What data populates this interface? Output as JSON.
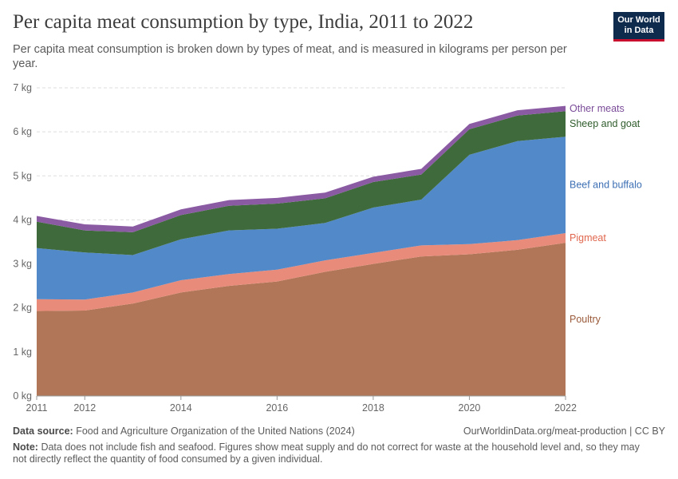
{
  "header": {
    "title": "Per capita meat consumption by type, India, 2011 to 2022",
    "subtitle": "Per capita meat consumption is broken down by types of meat, and is measured in kilograms per person per year.",
    "logo_line1": "Our World",
    "logo_line2": "in Data"
  },
  "footer": {
    "source_label": "Data source:",
    "source_text": "Food and Agriculture Organization of the United Nations (2024)",
    "url_text": "OurWorldinData.org/meat-production | CC BY",
    "note_label": "Note:",
    "note_text": "Data does not include fish and seafood. Figures show meat supply and do not correct for waste at the household level and, so they may not directly reflect the quantity of food consumed by a given individual."
  },
  "chart_data": {
    "type": "area",
    "stacked": true,
    "x": [
      2011,
      2012,
      2013,
      2014,
      2015,
      2016,
      2017,
      2018,
      2019,
      2020,
      2021,
      2022
    ],
    "xticks": [
      2011,
      2012,
      2014,
      2016,
      2018,
      2020,
      2022
    ],
    "yticks": [
      0,
      1,
      2,
      3,
      4,
      5,
      6,
      7
    ],
    "ytick_labels": [
      "0 kg",
      "1 kg",
      "2 kg",
      "3 kg",
      "4 kg",
      "5 kg",
      "6 kg",
      "7 kg"
    ],
    "ylim": [
      0,
      7
    ],
    "grid": "horizontal-dashed",
    "legend": "right, inline labels",
    "series": [
      {
        "name": "Poultry",
        "color": "#b07657",
        "labelColor": "#9a5a3a",
        "values": [
          1.93,
          1.94,
          2.1,
          2.35,
          2.5,
          2.6,
          2.82,
          3.0,
          3.17,
          3.22,
          3.32,
          3.48
        ]
      },
      {
        "name": "Pigmeat",
        "color": "#e98b7a",
        "labelColor": "#e0674e",
        "values": [
          0.27,
          0.25,
          0.25,
          0.28,
          0.27,
          0.27,
          0.26,
          0.25,
          0.25,
          0.23,
          0.22,
          0.22
        ]
      },
      {
        "name": "Beef and buffalo",
        "color": "#5189c9",
        "labelColor": "#3c6fb4",
        "values": [
          1.16,
          1.07,
          0.85,
          0.93,
          0.99,
          0.93,
          0.85,
          1.03,
          1.04,
          2.03,
          2.25,
          2.19
        ]
      },
      {
        "name": "Sheep and goat",
        "color": "#3f6a3c",
        "labelColor": "#2f5c2c",
        "values": [
          0.6,
          0.5,
          0.52,
          0.55,
          0.56,
          0.57,
          0.56,
          0.58,
          0.57,
          0.58,
          0.58,
          0.58
        ]
      },
      {
        "name": "Other meats",
        "color": "#8a5aa3",
        "labelColor": "#7a4b98",
        "values": [
          0.13,
          0.14,
          0.13,
          0.13,
          0.13,
          0.13,
          0.13,
          0.12,
          0.13,
          0.12,
          0.12,
          0.12
        ]
      }
    ]
  }
}
